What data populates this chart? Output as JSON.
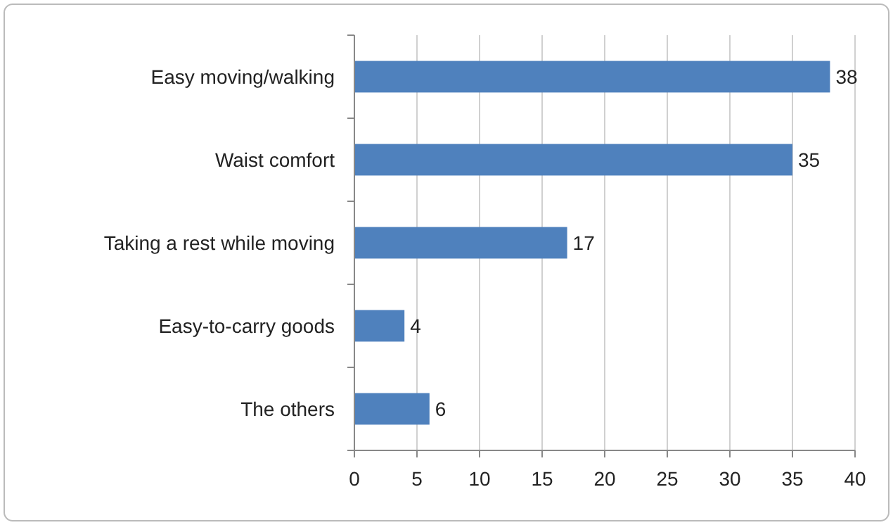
{
  "chart_data": {
    "type": "bar",
    "orientation": "horizontal",
    "categories": [
      "Easy moving/walking",
      "Waist comfort",
      "Taking a rest while moving",
      "Easy-to-carry goods",
      "The others"
    ],
    "values": [
      38,
      35,
      17,
      4,
      6
    ],
    "color": "#4f81bd",
    "xlim": [
      0,
      40
    ],
    "xticks": [
      0,
      5,
      10,
      15,
      20,
      25,
      30,
      35,
      40
    ],
    "grid": "x",
    "data_labels": true
  }
}
